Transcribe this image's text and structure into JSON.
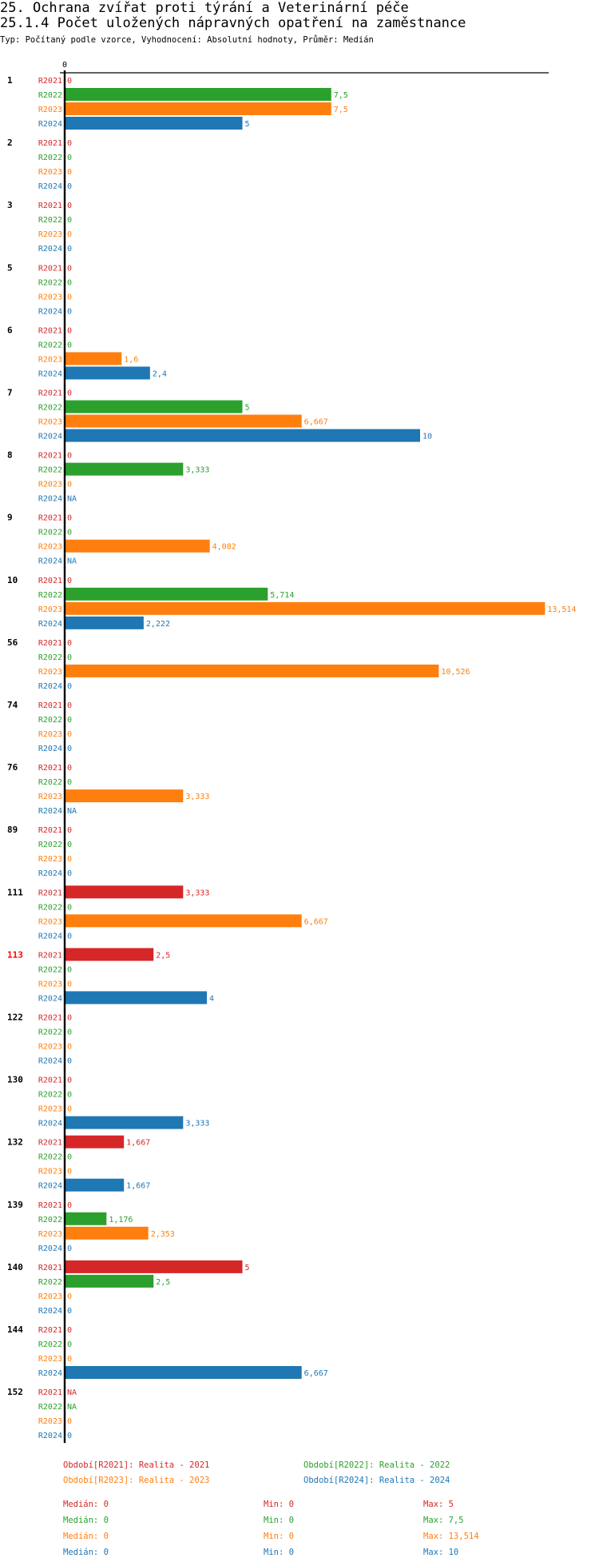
{
  "header": {
    "title": "25. Ochrana zvířat proti týrání a Veterinární péče",
    "subtitle": "25.1.4 Počet uložených nápravných opatření na zaměstnance",
    "info": "Typ: Počítaný podle vzorce, Vyhodnocení: Absolutní hodnoty, Průměr: Medián"
  },
  "chart_data": {
    "type": "bar",
    "orientation": "horizontal",
    "axis_tick_label": "0",
    "na_label": "NA",
    "series": [
      {
        "name": "R2021",
        "color": "#d62728"
      },
      {
        "name": "R2022",
        "color": "#2ca02c"
      },
      {
        "name": "R2023",
        "color": "#ff7f0e"
      },
      {
        "name": "R2024",
        "color": "#1f77b4"
      }
    ],
    "groups": [
      {
        "label": "1",
        "values": [
          0,
          7.5,
          7.5,
          5
        ]
      },
      {
        "label": "2",
        "values": [
          0,
          0,
          0,
          0
        ]
      },
      {
        "label": "3",
        "values": [
          0,
          0,
          0,
          0
        ]
      },
      {
        "label": "5",
        "values": [
          0,
          0,
          0,
          0
        ]
      },
      {
        "label": "6",
        "values": [
          0,
          0,
          1.6,
          2.4
        ]
      },
      {
        "label": "7",
        "values": [
          0,
          5,
          6.667,
          10
        ]
      },
      {
        "label": "8",
        "values": [
          0,
          3.333,
          0,
          null
        ]
      },
      {
        "label": "9",
        "values": [
          0,
          0,
          4.082,
          null
        ]
      },
      {
        "label": "10",
        "values": [
          0,
          5.714,
          13.514,
          2.222
        ]
      },
      {
        "label": "56",
        "values": [
          0,
          0,
          10.526,
          0
        ]
      },
      {
        "label": "74",
        "values": [
          0,
          0,
          0,
          0
        ]
      },
      {
        "label": "76",
        "values": [
          0,
          0,
          3.333,
          null
        ]
      },
      {
        "label": "89",
        "values": [
          0,
          0,
          0,
          0
        ]
      },
      {
        "label": "111",
        "values": [
          3.333,
          0,
          6.667,
          0
        ]
      },
      {
        "label": "113",
        "values": [
          2.5,
          0,
          0,
          4
        ],
        "highlight": "#ff0000"
      },
      {
        "label": "122",
        "values": [
          0,
          0,
          0,
          0
        ]
      },
      {
        "label": "130",
        "values": [
          0,
          0,
          0,
          3.333
        ]
      },
      {
        "label": "132",
        "values": [
          1.667,
          0,
          0,
          1.667
        ]
      },
      {
        "label": "139",
        "values": [
          0,
          1.176,
          2.353,
          0
        ]
      },
      {
        "label": "140",
        "values": [
          5,
          2.5,
          0,
          0
        ]
      },
      {
        "label": "144",
        "values": [
          0,
          0,
          0,
          6.667
        ]
      },
      {
        "label": "152",
        "values": [
          null,
          null,
          0,
          0
        ]
      }
    ],
    "xlim": [
      0,
      14.5
    ]
  },
  "legend": {
    "items": [
      {
        "key": "Období[R2021]:",
        "text": "Realita - 2021"
      },
      {
        "key": "Období[R2022]:",
        "text": "Realita - 2022"
      },
      {
        "key": "Období[R2023]:",
        "text": "Realita - 2023"
      },
      {
        "key": "Období[R2024]:",
        "text": "Realita - 2024"
      }
    ]
  },
  "stats": {
    "median_label": "Medián:",
    "min_label": "Min:",
    "max_label": "Max:",
    "rows": [
      {
        "median": "0",
        "min": "0",
        "max": "5"
      },
      {
        "median": "0",
        "min": "0",
        "max": "7,5"
      },
      {
        "median": "0",
        "min": "0",
        "max": "13,514"
      },
      {
        "median": "0",
        "min": "0",
        "max": "10"
      }
    ]
  }
}
